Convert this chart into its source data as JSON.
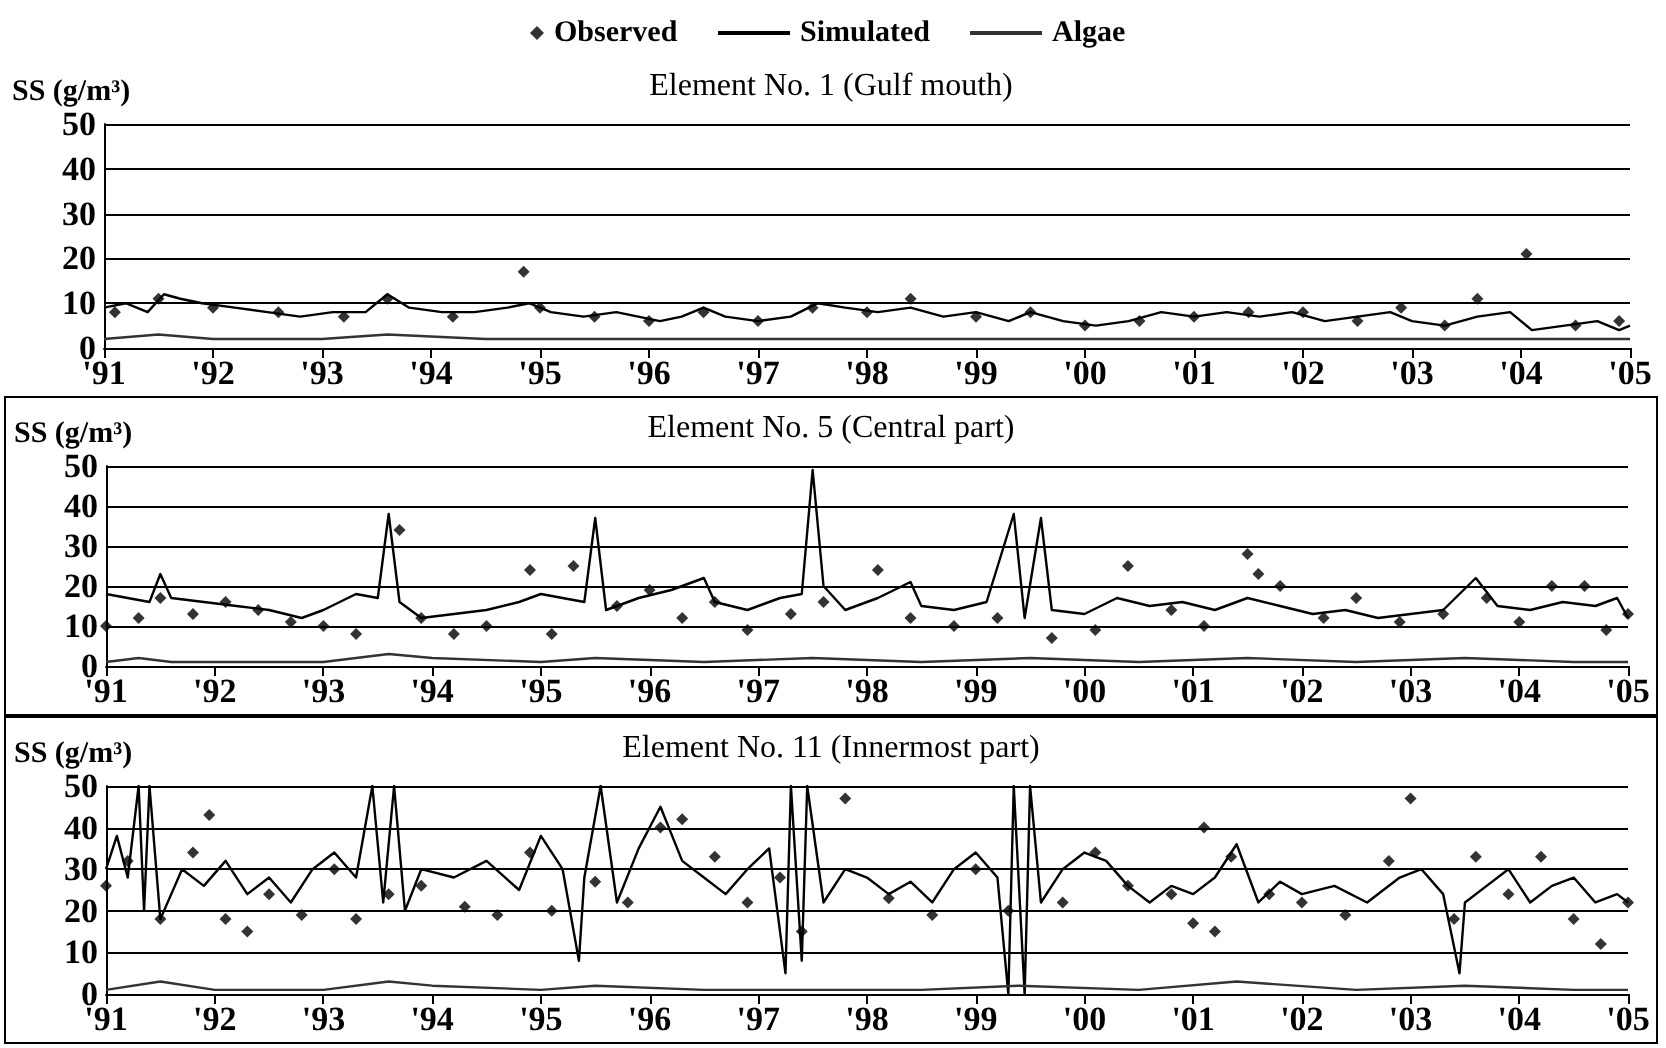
{
  "chart_data": [
    {
      "type": "line",
      "title": "Element No. 1 (Gulf mouth)",
      "ylabel": "SS (g/m³)",
      "legend": "top",
      "grid": "y",
      "xlim": [
        1991,
        2005
      ],
      "ylim": [
        0,
        50
      ],
      "yticks": [
        0,
        10,
        20,
        30,
        40,
        50
      ],
      "xticks": [
        {
          "value": 1991,
          "label": "'91"
        },
        {
          "value": 1992,
          "label": "'92"
        },
        {
          "value": 1993,
          "label": "'93"
        },
        {
          "value": 1994,
          "label": "'94"
        },
        {
          "value": 1995,
          "label": "'95"
        },
        {
          "value": 1996,
          "label": "'96"
        },
        {
          "value": 1997,
          "label": "'97"
        },
        {
          "value": 1998,
          "label": "'98"
        },
        {
          "value": 1999,
          "label": "'99"
        },
        {
          "value": 2000,
          "label": "'00"
        },
        {
          "value": 2001,
          "label": "'01"
        },
        {
          "value": 2002,
          "label": "'02"
        },
        {
          "value": 2003,
          "label": "'03"
        },
        {
          "value": 2004,
          "label": "'04"
        },
        {
          "value": 2005,
          "label": "'05"
        }
      ],
      "series": [
        {
          "name": "Observed",
          "type": "scatter",
          "marker": "diamond",
          "color": "#000000",
          "x": [
            1991.1,
            1991.5,
            1992.0,
            1992.6,
            1993.2,
            1993.6,
            1994.2,
            1994.85,
            1995.0,
            1995.5,
            1996.0,
            1996.5,
            1997.0,
            1997.5,
            1998.0,
            1998.4,
            1999.0,
            1999.5,
            2000.0,
            2000.5,
            2001.0,
            2001.5,
            2002.0,
            2002.5,
            2002.9,
            2003.3,
            2003.6,
            2004.05,
            2004.5,
            2004.9
          ],
          "values": [
            8,
            11,
            9,
            8,
            7,
            11,
            7,
            17,
            9,
            7,
            6,
            8,
            6,
            9,
            8,
            11,
            7,
            8,
            5,
            6,
            7,
            8,
            8,
            6,
            9,
            5,
            11,
            21,
            5,
            6
          ]
        },
        {
          "name": "Simulated",
          "marker": "none",
          "color": "#000000",
          "x": [
            1991.0,
            1991.2,
            1991.4,
            1991.55,
            1991.7,
            1991.9,
            1992.2,
            1992.5,
            1992.8,
            1993.1,
            1993.4,
            1993.6,
            1993.8,
            1994.1,
            1994.4,
            1994.7,
            1994.9,
            1995.1,
            1995.4,
            1995.7,
            1995.9,
            1996.1,
            1996.3,
            1996.5,
            1996.7,
            1997.0,
            1997.3,
            1997.55,
            1997.8,
            1998.1,
            1998.4,
            1998.7,
            1999.0,
            1999.3,
            1999.5,
            1999.8,
            2000.1,
            2000.4,
            2000.7,
            2001.0,
            2001.3,
            2001.6,
            2001.9,
            2002.2,
            2002.5,
            2002.8,
            2003.0,
            2003.3,
            2003.6,
            2003.9,
            2004.1,
            2004.4,
            2004.7,
            2004.9,
            2005.0
          ],
          "values": [
            9,
            10,
            8,
            12,
            11,
            10,
            9,
            8,
            7,
            8,
            8,
            12,
            9,
            8,
            8,
            9,
            10,
            8,
            7,
            8,
            7,
            6,
            7,
            9,
            7,
            6,
            7,
            10,
            9,
            8,
            9,
            7,
            8,
            6,
            8,
            6,
            5,
            6,
            8,
            7,
            8,
            7,
            8,
            6,
            7,
            8,
            6,
            5,
            7,
            8,
            4,
            5,
            6,
            4,
            5
          ]
        },
        {
          "name": "Algae",
          "marker": "none",
          "color": "#333333",
          "x": [
            1991.0,
            1991.5,
            1992.0,
            1993.0,
            1993.6,
            1994.5,
            1995.5,
            1996.5,
            1997.5,
            1998.5,
            1999.5,
            2000.5,
            2001.5,
            2002.5,
            2003.5,
            2004.5,
            2005.0
          ],
          "values": [
            2,
            3,
            2,
            2,
            3,
            2,
            2,
            2,
            2,
            2,
            2,
            2,
            2,
            2,
            2,
            2,
            2
          ]
        }
      ]
    },
    {
      "type": "line",
      "title": "Element No. 5 (Central part)",
      "ylabel": "SS (g/m³)",
      "grid": "y",
      "xlim": [
        1991,
        2005
      ],
      "ylim": [
        0,
        50
      ],
      "yticks": [
        0,
        10,
        20,
        30,
        40,
        50
      ],
      "xticks": [
        {
          "value": 1991,
          "label": "'91"
        },
        {
          "value": 1992,
          "label": "'92"
        },
        {
          "value": 1993,
          "label": "'93"
        },
        {
          "value": 1994,
          "label": "'94"
        },
        {
          "value": 1995,
          "label": "'95"
        },
        {
          "value": 1996,
          "label": "'96"
        },
        {
          "value": 1997,
          "label": "'97"
        },
        {
          "value": 1998,
          "label": "'98"
        },
        {
          "value": 1999,
          "label": "'99"
        },
        {
          "value": 2000,
          "label": "'00"
        },
        {
          "value": 2001,
          "label": "'01"
        },
        {
          "value": 2002,
          "label": "'02"
        },
        {
          "value": 2003,
          "label": "'03"
        },
        {
          "value": 2004,
          "label": "'04"
        },
        {
          "value": 2005,
          "label": "'05"
        }
      ],
      "series": [
        {
          "type": "scatter",
          "marker": "diamond",
          "color": "#000000",
          "x": [
            1991.0,
            1991.3,
            1991.5,
            1991.8,
            1992.1,
            1992.4,
            1992.7,
            1993.0,
            1993.3,
            1993.7,
            1993.9,
            1994.2,
            1994.5,
            1994.9,
            1995.1,
            1995.3,
            1995.7,
            1996.0,
            1996.3,
            1996.6,
            1996.9,
            1997.3,
            1997.6,
            1998.1,
            1998.4,
            1998.8,
            1999.2,
            1999.7,
            2000.1,
            2000.4,
            2000.8,
            2001.1,
            2001.5,
            2001.6,
            2001.8,
            2002.2,
            2002.5,
            2002.9,
            2003.3,
            2003.7,
            2004.0,
            2004.3,
            2004.6,
            2004.8,
            2005.0
          ],
          "values": [
            10,
            12,
            17,
            13,
            16,
            14,
            11,
            10,
            8,
            34,
            12,
            8,
            10,
            24,
            8,
            25,
            15,
            19,
            12,
            16,
            9,
            13,
            16,
            24,
            12,
            10,
            12,
            7,
            9,
            25,
            14,
            10,
            28,
            23,
            20,
            12,
            17,
            11,
            13,
            17,
            11,
            20,
            20,
            9,
            13
          ]
        },
        {
          "marker": "none",
          "color": "#000000",
          "x": [
            1991.0,
            1991.2,
            1991.4,
            1991.5,
            1991.6,
            1991.9,
            1992.2,
            1992.5,
            1992.8,
            1993.0,
            1993.3,
            1993.5,
            1993.6,
            1993.7,
            1993.9,
            1994.2,
            1994.5,
            1994.8,
            1995.0,
            1995.2,
            1995.4,
            1995.5,
            1995.6,
            1995.9,
            1996.2,
            1996.5,
            1996.6,
            1996.9,
            1997.2,
            1997.4,
            1997.5,
            1997.6,
            1997.8,
            1998.1,
            1998.4,
            1998.5,
            1998.8,
            1999.1,
            1999.35,
            1999.45,
            1999.6,
            1999.7,
            2000.0,
            2000.3,
            2000.6,
            2000.9,
            2001.2,
            2001.5,
            2001.8,
            2002.1,
            2002.4,
            2002.7,
            2003.0,
            2003.3,
            2003.6,
            2003.8,
            2004.1,
            2004.4,
            2004.7,
            2004.9,
            2005.0
          ],
          "values": [
            18,
            17,
            16,
            23,
            17,
            16,
            15,
            14,
            12,
            14,
            18,
            17,
            38,
            16,
            12,
            13,
            14,
            16,
            18,
            17,
            16,
            37,
            14,
            17,
            19,
            22,
            16,
            14,
            17,
            18,
            49,
            20,
            14,
            17,
            21,
            15,
            14,
            16,
            38,
            12,
            37,
            14,
            13,
            17,
            15,
            16,
            14,
            17,
            15,
            13,
            14,
            12,
            13,
            14,
            22,
            15,
            14,
            16,
            15,
            17,
            12
          ]
        },
        {
          "marker": "none",
          "color": "#333333",
          "x": [
            1991.0,
            1991.3,
            1991.6,
            1993.0,
            1993.6,
            1994.0,
            1995.0,
            1995.5,
            1996.5,
            1997.5,
            1998.5,
            1999.5,
            2000.5,
            2001.5,
            2002.5,
            2003.5,
            2004.5,
            2005.0
          ],
          "values": [
            1,
            2,
            1,
            1,
            3,
            2,
            1,
            2,
            1,
            2,
            1,
            2,
            1,
            2,
            1,
            2,
            1,
            1
          ]
        }
      ]
    },
    {
      "type": "line",
      "title": "Element No. 11 (Innermost part)",
      "ylabel": "SS (g/m³)",
      "grid": "y",
      "xlim": [
        1991,
        2005
      ],
      "ylim": [
        0,
        50
      ],
      "yticks": [
        0,
        10,
        20,
        30,
        40,
        50
      ],
      "xticks": [
        {
          "value": 1991,
          "label": "'91"
        },
        {
          "value": 1992,
          "label": "'92"
        },
        {
          "value": 1993,
          "label": "'93"
        },
        {
          "value": 1994,
          "label": "'94"
        },
        {
          "value": 1995,
          "label": "'95"
        },
        {
          "value": 1996,
          "label": "'96"
        },
        {
          "value": 1997,
          "label": "'97"
        },
        {
          "value": 1998,
          "label": "'98"
        },
        {
          "value": 1999,
          "label": "'99"
        },
        {
          "value": 2000,
          "label": "'00"
        },
        {
          "value": 2001,
          "label": "'01"
        },
        {
          "value": 2002,
          "label": "'02"
        },
        {
          "value": 2003,
          "label": "'03"
        },
        {
          "value": 2004,
          "label": "'04"
        },
        {
          "value": 2005,
          "label": "'05"
        }
      ],
      "series": [
        {
          "type": "scatter",
          "marker": "diamond",
          "color": "#000000",
          "x": [
            1991.0,
            1991.2,
            1991.5,
            1991.8,
            1991.95,
            1992.1,
            1992.3,
            1992.5,
            1992.8,
            1993.1,
            1993.3,
            1993.6,
            1993.9,
            1994.3,
            1994.6,
            1994.9,
            1995.1,
            1995.5,
            1995.8,
            1996.1,
            1996.3,
            1996.6,
            1996.9,
            1997.2,
            1997.4,
            1997.8,
            1998.2,
            1998.6,
            1999.0,
            1999.3,
            1999.8,
            2000.1,
            2000.4,
            2000.8,
            2001.0,
            2001.1,
            2001.2,
            2001.35,
            2001.7,
            2002.0,
            2002.4,
            2002.8,
            2003.0,
            2003.4,
            2003.6,
            2003.9,
            2004.2,
            2004.5,
            2004.75,
            2005.0
          ],
          "values": [
            26,
            32,
            18,
            34,
            43,
            18,
            15,
            24,
            19,
            30,
            18,
            24,
            26,
            21,
            19,
            34,
            20,
            27,
            22,
            40,
            42,
            33,
            22,
            28,
            15,
            47,
            23,
            19,
            30,
            20,
            22,
            34,
            26,
            24,
            17,
            40,
            15,
            33,
            24,
            22,
            19,
            32,
            47,
            18,
            33,
            24,
            33,
            18,
            12,
            22
          ]
        },
        {
          "marker": "none",
          "color": "#000000",
          "x": [
            1991.0,
            1991.1,
            1991.2,
            1991.3,
            1991.35,
            1991.4,
            1991.5,
            1991.7,
            1991.9,
            1992.1,
            1992.3,
            1992.5,
            1992.7,
            1992.9,
            1993.1,
            1993.3,
            1993.45,
            1993.55,
            1993.65,
            1993.75,
            1993.9,
            1994.2,
            1994.5,
            1994.8,
            1995.0,
            1995.2,
            1995.35,
            1995.4,
            1995.55,
            1995.7,
            1995.9,
            1996.1,
            1996.3,
            1996.5,
            1996.7,
            1996.9,
            1997.1,
            1997.25,
            1997.3,
            1997.4,
            1997.45,
            1997.6,
            1997.8,
            1998.0,
            1998.2,
            1998.4,
            1998.6,
            1998.8,
            1999.0,
            1999.2,
            1999.3,
            1999.35,
            1999.45,
            1999.5,
            1999.6,
            1999.8,
            2000.0,
            2000.2,
            2000.4,
            2000.6,
            2000.8,
            2001.0,
            2001.2,
            2001.4,
            2001.6,
            2001.8,
            2002.0,
            2002.3,
            2002.6,
            2002.9,
            2003.1,
            2003.3,
            2003.45,
            2003.5,
            2003.7,
            2003.9,
            2004.1,
            2004.3,
            2004.5,
            2004.7,
            2004.9,
            2005.0
          ],
          "values": [
            30,
            38,
            28,
            50,
            20,
            50,
            18,
            30,
            26,
            32,
            24,
            28,
            22,
            30,
            34,
            28,
            50,
            22,
            50,
            20,
            30,
            28,
            32,
            25,
            38,
            30,
            8,
            28,
            50,
            22,
            35,
            45,
            32,
            28,
            24,
            30,
            35,
            5,
            50,
            8,
            50,
            22,
            30,
            28,
            24,
            27,
            22,
            30,
            34,
            28,
            0,
            50,
            0,
            50,
            22,
            30,
            34,
            32,
            26,
            22,
            26,
            24,
            28,
            36,
            22,
            27,
            24,
            26,
            22,
            28,
            30,
            24,
            5,
            22,
            26,
            30,
            22,
            26,
            28,
            22,
            24,
            22
          ]
        },
        {
          "marker": "none",
          "color": "#333333",
          "x": [
            1991.0,
            1991.5,
            1992.0,
            1993.0,
            1993.6,
            1994.0,
            1995.0,
            1995.5,
            1996.5,
            1997.5,
            1998.5,
            1999.4,
            2000.5,
            2001.4,
            2002.5,
            2003.5,
            2004.5,
            2005.0
          ],
          "values": [
            1,
            3,
            1,
            1,
            3,
            2,
            1,
            2,
            1,
            1,
            1,
            2,
            1,
            3,
            1,
            2,
            1,
            1
          ]
        }
      ]
    }
  ]
}
